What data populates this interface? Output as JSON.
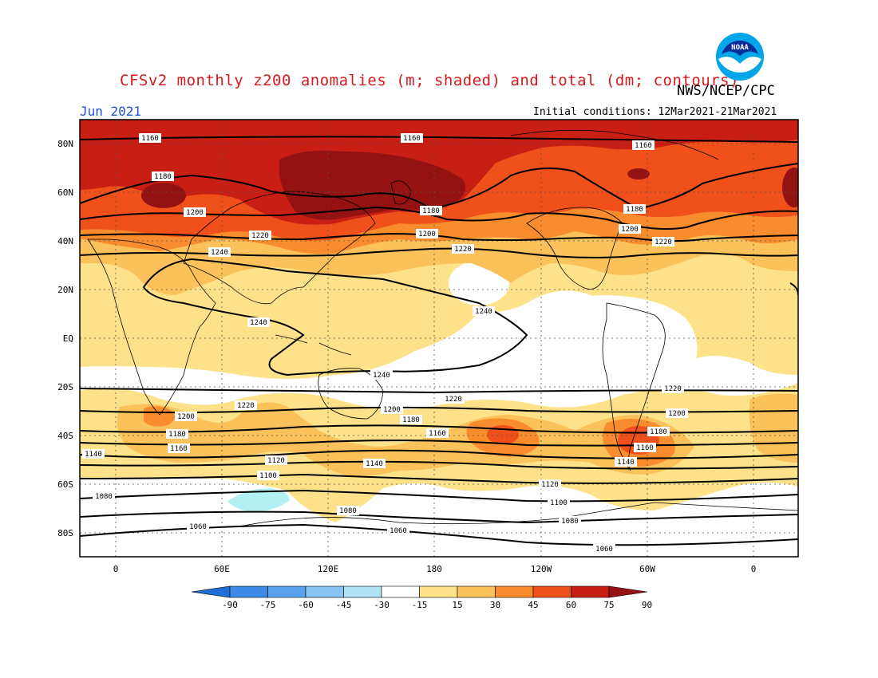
{
  "title": "CFSv2 monthly z200 anomalies (m; shaded) and total (dm; contours)",
  "org": "NWS/NCEP/CPC",
  "month": "Jun 2021",
  "initial_conditions": "Initial conditions: 12Mar2021-21Mar2021",
  "logo_text": "NOAA",
  "colors": {
    "title": "#d7191c",
    "month": "#1f4fd6",
    "c15_30": "#fde28a",
    "c30_45": "#fbc15b",
    "c45_60": "#f98c2d",
    "c60_75": "#f0501a",
    "c75_90": "#c81e13",
    "c90": "#941212",
    "cneg15": "#b2f0f4"
  },
  "axes": {
    "lat_labels": [
      "80N",
      "60N",
      "40N",
      "20N",
      "EQ",
      "20S",
      "40S",
      "60S",
      "80S"
    ],
    "lon_labels": [
      "0",
      "60E",
      "120E",
      "180",
      "120W",
      "60W",
      "0"
    ]
  },
  "colorbar": {
    "labels": [
      "-90",
      "-75",
      "-60",
      "-45",
      "-30",
      "-15",
      "15",
      "30",
      "45",
      "60",
      "75",
      "90"
    ],
    "colors": [
      "#1e6fd6",
      "#3b8ae6",
      "#5aa2ee",
      "#88c4f4",
      "#b2e4f6",
      "#ffffff",
      "#fde28a",
      "#fbc15b",
      "#f98c2d",
      "#f0501a",
      "#c81e13",
      "#941212"
    ]
  },
  "contour_labels": {
    "c1160a": "1160",
    "c1160b": "1160",
    "c1160c": "1160",
    "c1180a": "1180",
    "c1180b": "1180",
    "c1180c": "1180",
    "c1200a": "1200",
    "c1200b": "1200",
    "c1200c": "1200",
    "c1220a": "1220",
    "c1220b": "1220",
    "c1220c": "1220",
    "c1240a": "1240",
    "c1240b": "1240",
    "c1240c": "1240",
    "c1240d": "1240",
    "s1220a": "1220",
    "s1220b": "1220",
    "s1220c": "1220",
    "s1200a": "1200",
    "s1200b": "1200",
    "s1200c": "1200",
    "s1180a": "1180",
    "s1180b": "1180",
    "s1180c": "1180",
    "s1160a": "1160",
    "s1160b": "1160",
    "s1160c": "1160",
    "s1140a": "1140",
    "s1140b": "1140",
    "s1140c": "1140",
    "s1120a": "1120",
    "s1120b": "1120",
    "s1100a": "1100",
    "s1100b": "1100",
    "s1080a": "1080",
    "s1080b": "1080",
    "s1080c": "1080",
    "s1060a": "1060",
    "s1060b": "1060",
    "s1060c": "1060"
  }
}
